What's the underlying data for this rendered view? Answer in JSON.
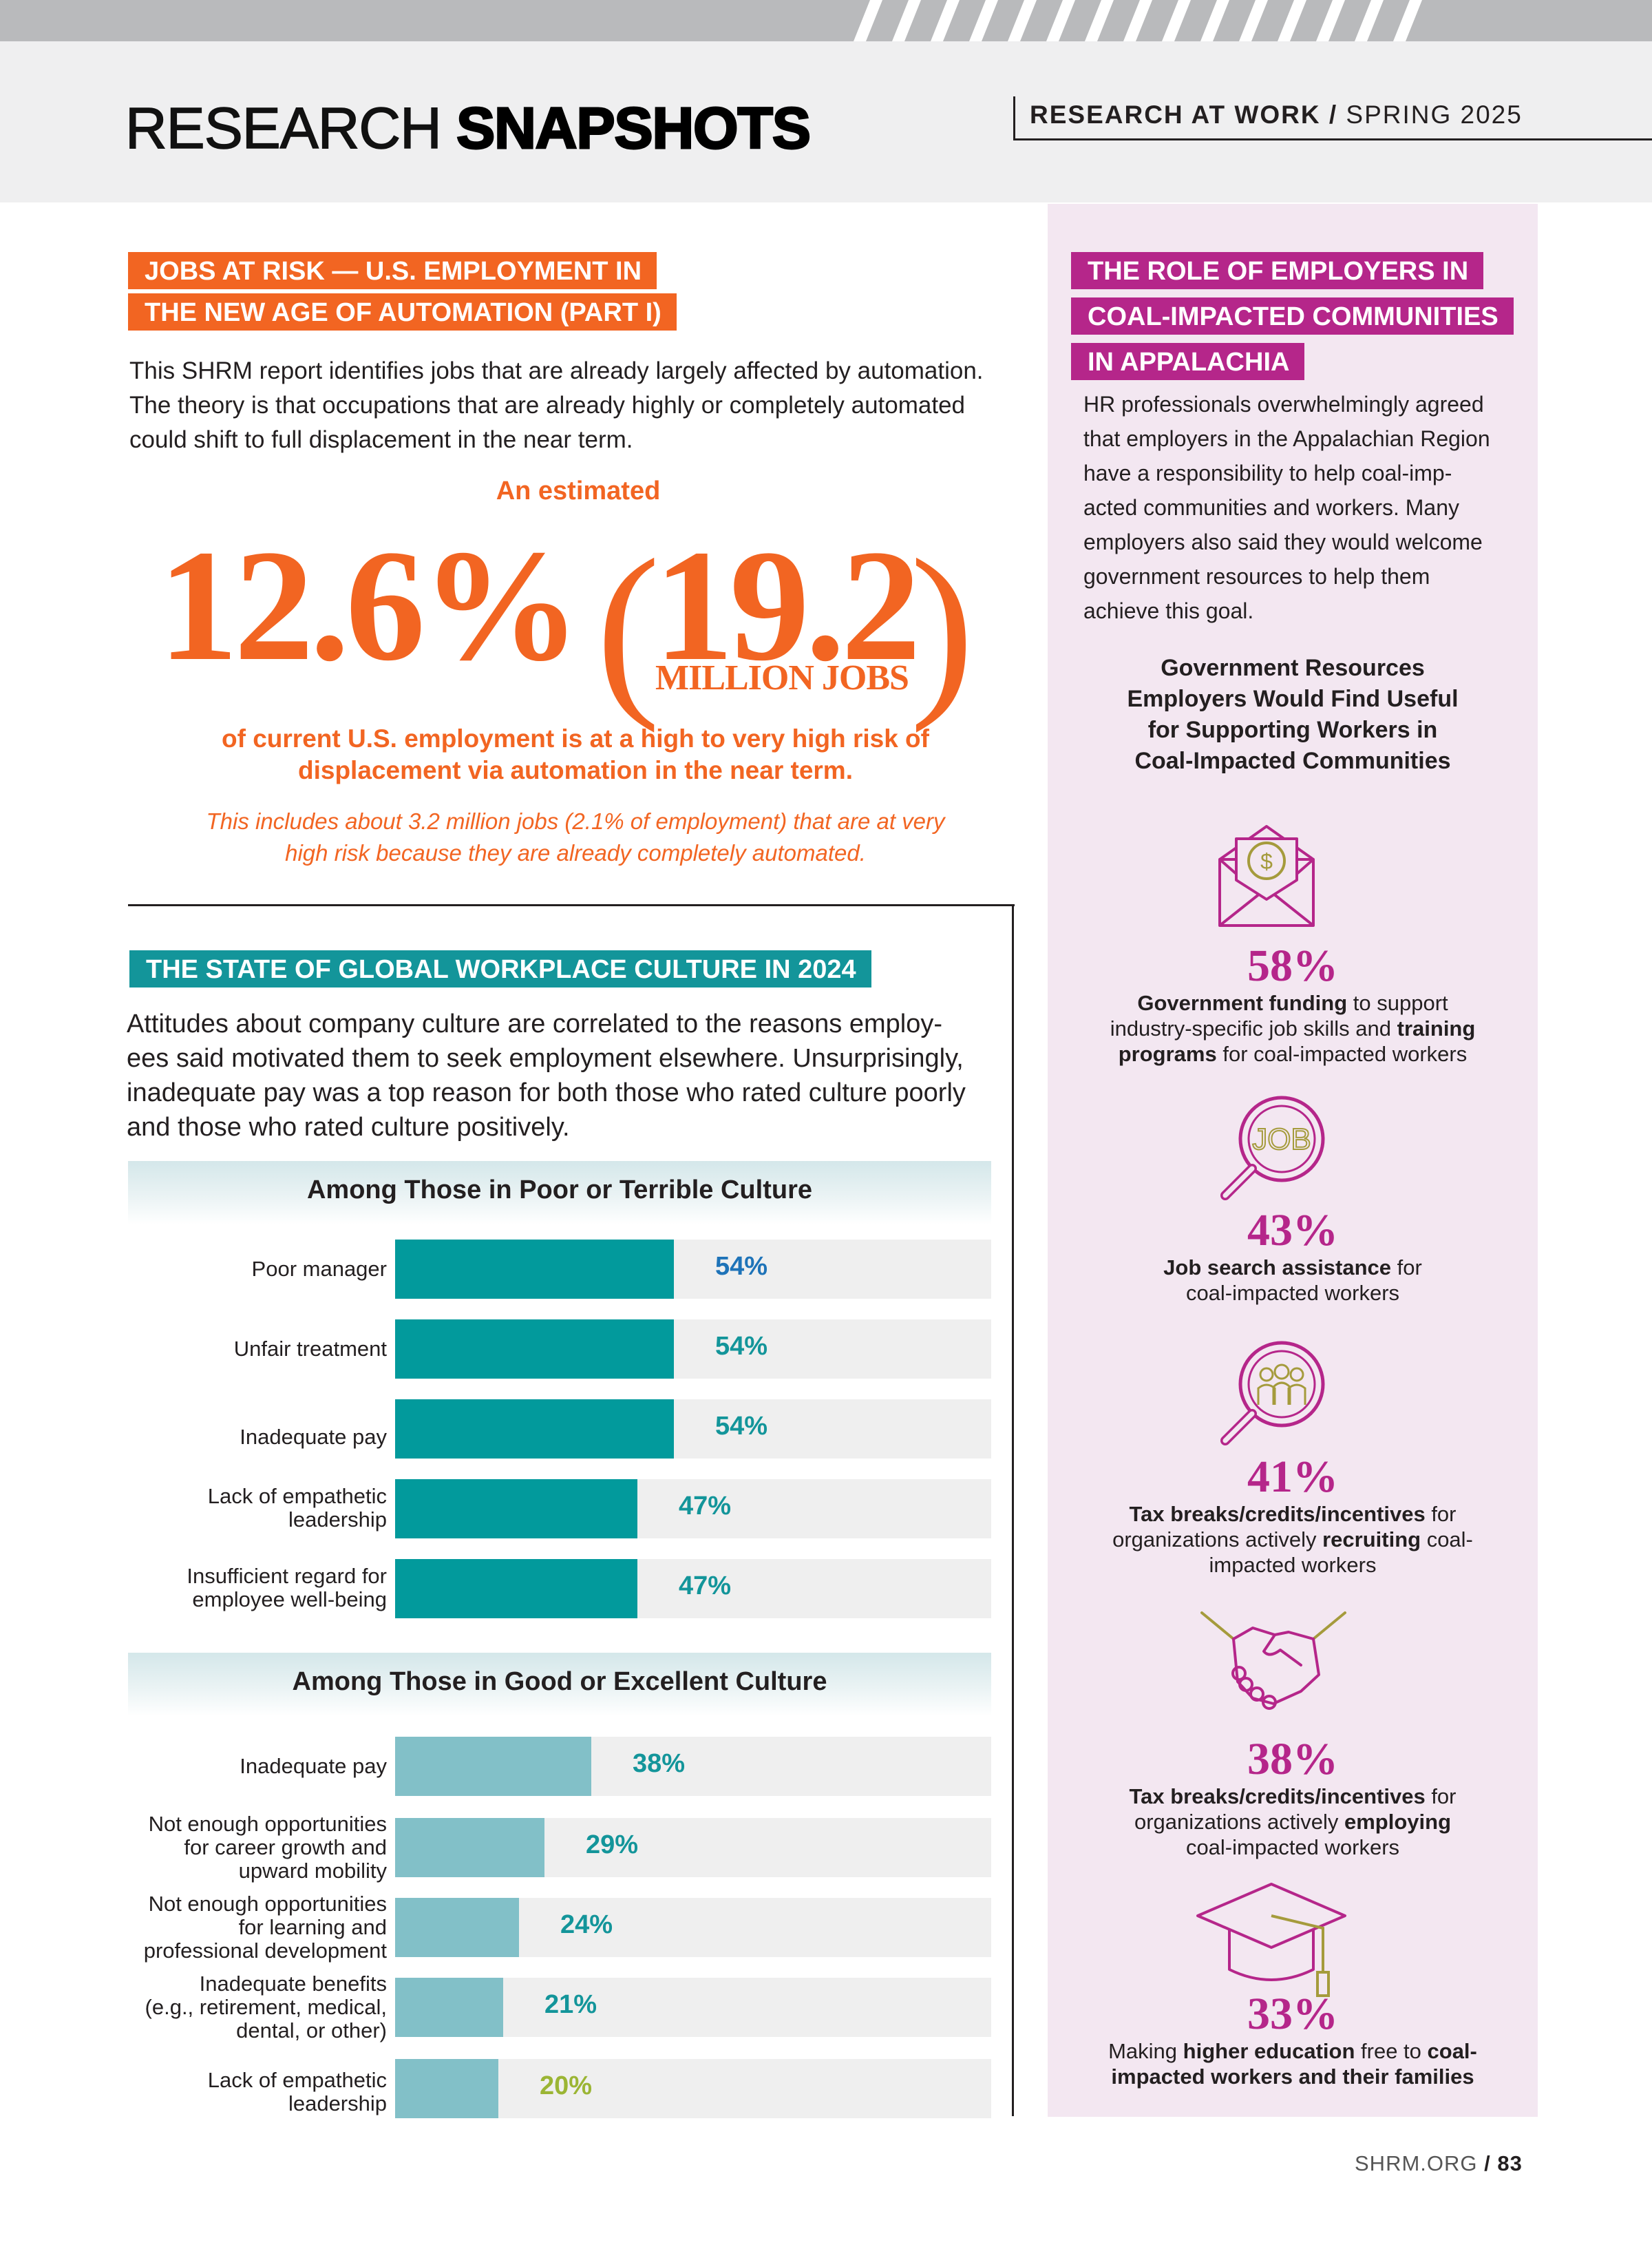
{
  "header": {
    "title_part1": "RESEARCH ",
    "title_part2": "SNAPSHOTS",
    "issue_series": "RESEARCH AT WORK /",
    "issue_date": " SPRING 2025"
  },
  "jobs_at_risk": {
    "tag_line1": "JOBS AT RISK — U.S. EMPLOYMENT IN",
    "tag_line2": "THE NEW AGE OF AUTOMATION (PART I)",
    "intro": "This SHRM report identifies jobs that are already largely affected by automation. The theory is that occupations that are already highly or completely automated could shift to full displacement in the near term.",
    "intro_lines": [
      "This SHRM report identifies jobs that are already largely affected by automation.",
      "The theory is that occupations that are already highly or completely automated",
      "could shift to full displacement in the near term."
    ],
    "estimated_label": "An estimated",
    "big_percent": "12.6%",
    "paren_open": "(",
    "big_millions": "19.2",
    "paren_close": ")",
    "big_unit": "MILLION JOBS",
    "statement_line1": "of current U.S. employment is at a high to very high risk of",
    "statement_line2": "displacement via automation in the near term.",
    "note_line1": "This includes about 3.2 million jobs (2.1% of employment) that are at very",
    "note_line2": "high risk because they are already completely automated."
  },
  "workplace_culture": {
    "tag": "THE STATE OF GLOBAL WORKPLACE CULTURE IN 2024",
    "intro_lines": [
      "Attitudes about company culture are correlated to the reasons employ-",
      "ees said motivated them to seek employment elsewhere. Unsurprisingly,",
      "inadequate pay was a top reason for both those who rated culture poorly",
      "and those who rated culture positively."
    ]
  },
  "chart_data": [
    {
      "type": "bar",
      "orientation": "horizontal",
      "title": "Among Those in Poor or Terrible Culture",
      "categories": [
        "Poor manager",
        "Unfair treatment",
        "Inadequate pay",
        "Lack of empathetic leadership",
        "Insufficient regard for employee well-being"
      ],
      "category_lines": [
        [
          "Poor manager"
        ],
        [
          "Unfair treatment"
        ],
        [
          "Inadequate pay"
        ],
        [
          "Lack of empathetic",
          "leadership"
        ],
        [
          "Insufficient regard for",
          "employee well-being"
        ]
      ],
      "values": [
        54,
        54,
        54,
        47,
        47
      ],
      "value_labels": [
        "54%",
        "54%",
        "54%",
        "47%",
        "47%"
      ],
      "value_colors": [
        "#1e73b8",
        "#13959a",
        "#13959a",
        "#13959a",
        "#13959a"
      ],
      "bar_color": "#029a9c",
      "xlim": [
        0,
        100
      ]
    },
    {
      "type": "bar",
      "orientation": "horizontal",
      "title": "Among Those in Good or Excellent Culture",
      "categories": [
        "Inadequate pay",
        "Not enough opportunities for career growth and upward mobility",
        "Not enough opportunities for learning and professional development",
        "Inadequate benefits (e.g., retirement, medical, dental, or other)",
        "Lack of empathetic leadership"
      ],
      "category_lines": [
        [
          "Inadequate pay"
        ],
        [
          "Not enough opportunities",
          "for career growth and",
          "upward mobility"
        ],
        [
          "Not enough opportunities",
          "for learning and",
          "professional development"
        ],
        [
          "Inadequate benefits",
          "(e.g., retirement, medical,",
          "dental, or other)"
        ],
        [
          "Lack of empathetic",
          "leadership"
        ]
      ],
      "values": [
        38,
        29,
        24,
        21,
        20
      ],
      "value_labels": [
        "38%",
        "29%",
        "24%",
        "21%",
        "20%"
      ],
      "value_colors": [
        "#13959a",
        "#13959a",
        "#13959a",
        "#13959a",
        "#9bb534"
      ],
      "bar_color": "#82c0c8",
      "xlim": [
        0,
        100
      ]
    }
  ],
  "appalachia": {
    "tag_lines": [
      "THE ROLE OF EMPLOYERS IN",
      "COAL-IMPACTED COMMUNITIES",
      "IN APPALACHIA"
    ],
    "intro_lines": [
      "HR professionals overwhelmingly agreed",
      "that employers in the Appalachian Region",
      "have a responsibility to help coal-imp-",
      "acted communities and workers. Many",
      "employers also said they would welcome",
      "government resources to help them",
      "achieve this goal."
    ],
    "subhead_lines": [
      "Government Resources",
      "Employers Would Find Useful",
      "for Supporting Workers in",
      "Coal-Impacted Communities"
    ],
    "items": [
      {
        "icon": "envelope-dollar-icon",
        "value": "58%",
        "parts": [
          [
            "b",
            "Government funding"
          ],
          [
            "n",
            " to support"
          ],
          [
            "br",
            ""
          ],
          [
            "n",
            "industry-specific job skills and "
          ],
          [
            "b",
            "training"
          ],
          [
            "br",
            ""
          ],
          [
            "b",
            "programs"
          ],
          [
            "n",
            " for coal-impacted workers"
          ]
        ]
      },
      {
        "icon": "job-search-icon",
        "value": "43%",
        "parts": [
          [
            "b",
            "Job search assistance"
          ],
          [
            "n",
            " for"
          ],
          [
            "br",
            ""
          ],
          [
            "n",
            "coal-impacted workers"
          ]
        ]
      },
      {
        "icon": "people-search-icon",
        "value": "41%",
        "parts": [
          [
            "b",
            "Tax breaks/credits/incentives"
          ],
          [
            "n",
            " for"
          ],
          [
            "br",
            ""
          ],
          [
            "n",
            "organizations actively "
          ],
          [
            "b",
            "recruiting"
          ],
          [
            "n",
            " coal-"
          ],
          [
            "br",
            ""
          ],
          [
            "n",
            "impacted workers"
          ]
        ]
      },
      {
        "icon": "handshake-icon",
        "value": "38%",
        "parts": [
          [
            "b",
            "Tax breaks/credits/incentives"
          ],
          [
            "n",
            " for"
          ],
          [
            "br",
            ""
          ],
          [
            "n",
            "organizations actively "
          ],
          [
            "b",
            "employing"
          ],
          [
            "br",
            ""
          ],
          [
            "n",
            "coal-impacted workers"
          ]
        ]
      },
      {
        "icon": "graduation-cap-icon",
        "value": "33%",
        "parts": [
          [
            "n",
            "Making "
          ],
          [
            "b",
            "higher education"
          ],
          [
            "n",
            " free to "
          ],
          [
            "b",
            "coal-"
          ],
          [
            "br",
            ""
          ],
          [
            "b",
            "impacted workers and their families"
          ]
        ]
      }
    ],
    "icon_job_text": "JOB"
  },
  "footer": {
    "site": "SHRM.ORG ",
    "page": "/ 83"
  },
  "colors": {
    "orange": "#f26522",
    "teal": "#13959a",
    "magenta": "#b5268a",
    "olive": "#a59b3c"
  }
}
